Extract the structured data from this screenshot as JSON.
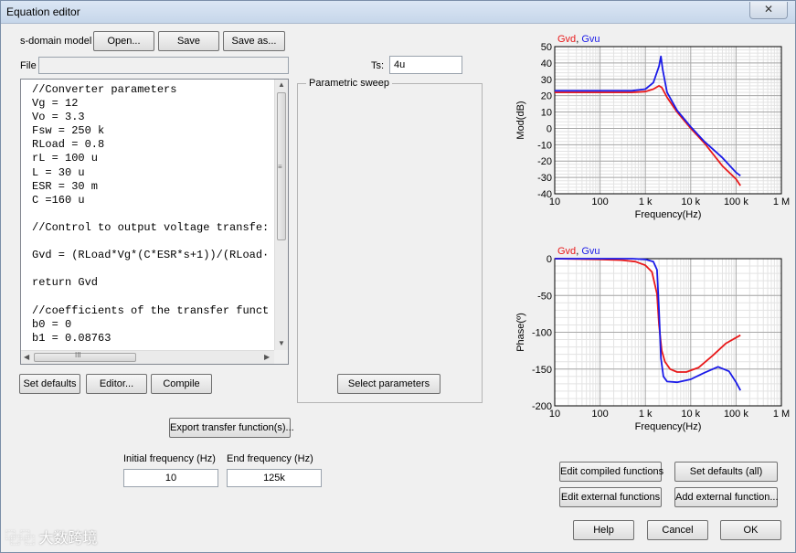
{
  "window": {
    "title": "Equation editor",
    "close_glyph": "✕"
  },
  "model": {
    "label": "s-domain model",
    "open_label": "Open...",
    "save_label": "Save",
    "saveas_label": "Save as...",
    "file_label": "File",
    "file_value": "",
    "ts_label": "Ts:",
    "ts_value": "4u"
  },
  "editor": {
    "code": "//Converter parameters\nVg = 12\nVo = 3.3\nFsw = 250 k\nRLoad = 0.8\nrL = 100 u\nL = 30 u\nESR = 30 m\nC =160 u\n\n//Control to output voltage transfe:\n\nGvd = (RLoad*Vg*(C*ESR*s+1))/(RLoad·\n\nreturn Gvd\n\n//coefficients of the transfer funct\nb0 = 0\nb1 = 0.08763",
    "hscroll_thumb_label": "III",
    "vscroll_grip": "≡"
  },
  "buttons": {
    "set_defaults": "Set defaults",
    "editor": "Editor...",
    "compile": "Compile",
    "select_parameters": "Select parameters",
    "export": "Export transfer function(s)...",
    "edit_compiled": "Edit compiled functions",
    "set_defaults_all": "Set defaults (all)",
    "edit_external": "Edit external functions",
    "add_external": "Add external function...",
    "help": "Help",
    "cancel": "Cancel",
    "ok": "OK"
  },
  "sweep": {
    "label": "Parametric sweep"
  },
  "frequency": {
    "initial_label": "Initial frequency (Hz)",
    "initial_value": "10",
    "end_label": "End frequency (Hz)",
    "end_value": "125k"
  },
  "watermark": "⿻⿻ 大数跨境",
  "colors": {
    "gvd": "#e8191a",
    "gvu": "#1a1ae8"
  },
  "chart_data": [
    {
      "type": "line",
      "legend": [
        "Gvd",
        "Gvu"
      ],
      "xlabel": "Frequency(Hz)",
      "ylabel": "Mod(dB)",
      "x_scale": "log",
      "xlim": [
        10,
        1000000
      ],
      "ylim": [
        -40,
        50
      ],
      "x_ticks": [
        10,
        100,
        1000,
        10000,
        100000,
        1000000
      ],
      "x_tick_labels": [
        "10",
        "100",
        "1 k",
        "10 k",
        "100 k",
        "1 M"
      ],
      "y_ticks": [
        50,
        40,
        30,
        20,
        10,
        0,
        -10,
        -20,
        -30,
        -40
      ],
      "grid": true,
      "series": [
        {
          "name": "Gvd",
          "color": "#e8191a",
          "x": [
            10,
            100,
            500,
            1000,
            1500,
            2000,
            2300,
            3000,
            5000,
            10000,
            20000,
            50000,
            100000,
            125000
          ],
          "y": [
            22,
            22,
            22,
            22.5,
            24,
            26,
            25,
            19,
            10,
            0,
            -9,
            -23,
            -31,
            -35
          ]
        },
        {
          "name": "Gvu",
          "color": "#1a1ae8",
          "x": [
            10,
            100,
            500,
            1000,
            1500,
            2000,
            2200,
            2400,
            3000,
            5000,
            10000,
            20000,
            50000,
            100000,
            125000
          ],
          "y": [
            23,
            23,
            23,
            24,
            28,
            38,
            44,
            36,
            22,
            11,
            1,
            -8,
            -18,
            -27,
            -29
          ]
        }
      ]
    },
    {
      "type": "line",
      "legend": [
        "Gvd",
        "Gvu"
      ],
      "xlabel": "Frequency(Hz)",
      "ylabel": "Phase(º)",
      "x_scale": "log",
      "xlim": [
        10,
        1000000
      ],
      "ylim": [
        -200,
        0
      ],
      "x_ticks": [
        10,
        100,
        1000,
        10000,
        100000,
        1000000
      ],
      "x_tick_labels": [
        "10",
        "100",
        "1 k",
        "10 k",
        "100 k",
        "1 M"
      ],
      "y_ticks": [
        0,
        -50,
        -100,
        -150,
        -200
      ],
      "grid": true,
      "series": [
        {
          "name": "Gvd",
          "color": "#e8191a",
          "x": [
            10,
            100,
            300,
            600,
            1000,
            1400,
            1800,
            2000,
            2300,
            2700,
            3500,
            5000,
            8000,
            15000,
            30000,
            60000,
            125000
          ],
          "y": [
            0,
            -1,
            -2,
            -4,
            -9,
            -18,
            -48,
            -90,
            -125,
            -140,
            -150,
            -154,
            -154,
            -148,
            -132,
            -115,
            -104
          ]
        },
        {
          "name": "Gvu",
          "color": "#1a1ae8",
          "x": [
            10,
            100,
            500,
            1000,
            1500,
            1800,
            2000,
            2200,
            2500,
            3000,
            5000,
            10000,
            20000,
            40000,
            70000,
            100000,
            125000
          ],
          "y": [
            0,
            0,
            0,
            -1,
            -4,
            -15,
            -70,
            -135,
            -160,
            -167,
            -168,
            -164,
            -155,
            -147,
            -153,
            -168,
            -179
          ]
        }
      ]
    }
  ]
}
